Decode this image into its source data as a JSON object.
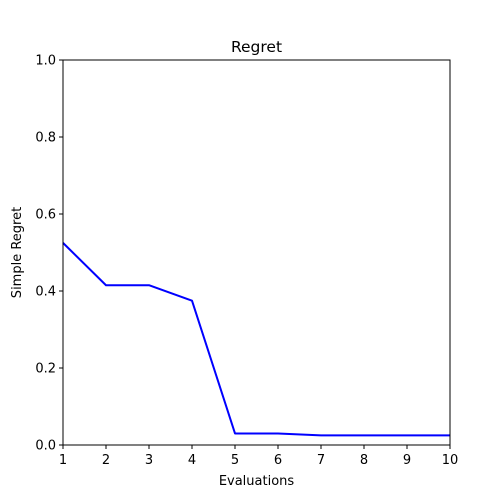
{
  "chart_data": {
    "type": "line",
    "title": "Regret",
    "xlabel": "Evaluations",
    "ylabel": "Simple Regret",
    "xlim": [
      1,
      10
    ],
    "ylim": [
      0.0,
      1.0
    ],
    "x_ticks": [
      "1",
      "2",
      "3",
      "4",
      "5",
      "6",
      "7",
      "8",
      "9",
      "10"
    ],
    "y_ticks": [
      "0.0",
      "0.2",
      "0.4",
      "0.6",
      "0.8",
      "1.0"
    ],
    "grid": false,
    "legend": "none",
    "series": [
      {
        "color": "#0000ff",
        "x": [
          1,
          2,
          3,
          4,
          5,
          6,
          7,
          8,
          9,
          10
        ],
        "y": [
          0.525,
          0.415,
          0.415,
          0.375,
          0.03,
          0.03,
          0.025,
          0.025,
          0.025,
          0.025
        ]
      }
    ]
  }
}
